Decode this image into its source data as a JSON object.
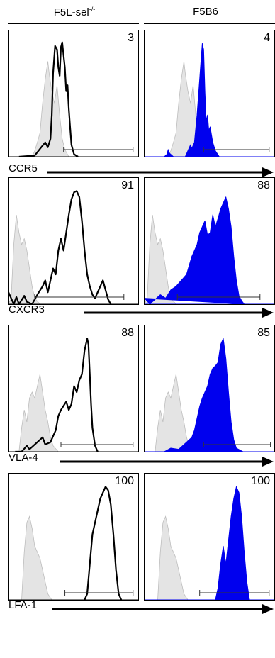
{
  "columns": [
    {
      "label": "F5L-sel",
      "sup": "-/-",
      "fill": "none",
      "stroke": "#000000"
    },
    {
      "label": "F5B6",
      "sup": "",
      "fill": "#0000ee",
      "stroke": "#0000ee"
    }
  ],
  "colors": {
    "control": "#e4e4e4",
    "control_stroke": "#bdbdbd",
    "f5b6": "#0000ee",
    "f5lsel": "#000000"
  },
  "chart_data": {
    "type": "histogram-grid",
    "x_range": [
      0,
      1
    ],
    "rows": [
      {
        "marker": "CCR5",
        "percentages": [
          "3",
          "4"
        ],
        "gate": [
          [
            0.42,
            0.95
          ],
          [
            0.45,
            0.95
          ]
        ],
        "control": [
          [
            0.18,
            0
          ],
          [
            0.2,
            0.05
          ],
          [
            0.22,
            0.12
          ],
          [
            0.24,
            0.2
          ],
          [
            0.26,
            0.45
          ],
          [
            0.28,
            0.65
          ],
          [
            0.3,
            0.8
          ],
          [
            0.31,
            0.7
          ],
          [
            0.33,
            0.55
          ],
          [
            0.35,
            0.45
          ],
          [
            0.37,
            0.6
          ],
          [
            0.39,
            0.35
          ],
          [
            0.41,
            0.15
          ],
          [
            0.43,
            0.06
          ],
          [
            0.46,
            0
          ]
        ],
        "samples": [
          [
            [
              0.08,
              0
            ],
            [
              0.2,
              0.01
            ],
            [
              0.25,
              0.08
            ],
            [
              0.28,
              0.12
            ],
            [
              0.3,
              0.08
            ],
            [
              0.32,
              0.15
            ],
            [
              0.33,
              0.35
            ],
            [
              0.34,
              0.7
            ],
            [
              0.355,
              0.93
            ],
            [
              0.37,
              0.9
            ],
            [
              0.38,
              0.75
            ],
            [
              0.39,
              0.68
            ],
            [
              0.4,
              0.92
            ],
            [
              0.41,
              0.96
            ],
            [
              0.42,
              0.85
            ],
            [
              0.43,
              0.75
            ],
            [
              0.44,
              0.55
            ],
            [
              0.45,
              0.6
            ],
            [
              0.46,
              0.4
            ],
            [
              0.47,
              0.25
            ],
            [
              0.48,
              0.1
            ],
            [
              0.5,
              0.02
            ],
            [
              0.53,
              0
            ]
          ],
          [
            [
              0.15,
              0
            ],
            [
              0.17,
              0.02
            ],
            [
              0.18,
              0.06
            ],
            [
              0.19,
              0.03
            ],
            [
              0.22,
              0
            ],
            [
              0.31,
              0
            ],
            [
              0.33,
              0.05
            ],
            [
              0.35,
              0.1
            ],
            [
              0.36,
              0.07
            ],
            [
              0.38,
              0.12
            ],
            [
              0.4,
              0.35
            ],
            [
              0.42,
              0.65
            ],
            [
              0.43,
              0.8
            ],
            [
              0.44,
              0.95
            ],
            [
              0.45,
              0.9
            ],
            [
              0.46,
              0.55
            ],
            [
              0.47,
              0.3
            ],
            [
              0.48,
              0.35
            ],
            [
              0.49,
              0.22
            ],
            [
              0.5,
              0.25
            ],
            [
              0.52,
              0.12
            ],
            [
              0.54,
              0.05
            ],
            [
              0.57,
              0
            ]
          ]
        ]
      },
      {
        "marker": "CXCR3",
        "percentages": [
          "91",
          "88"
        ],
        "gate": [
          [
            0.2,
            0.88
          ],
          [
            0.25,
            0.88
          ]
        ],
        "control": [
          [
            0,
            0
          ],
          [
            0.02,
            0.05
          ],
          [
            0.04,
            0.5
          ],
          [
            0.06,
            0.75
          ],
          [
            0.08,
            0.6
          ],
          [
            0.1,
            0.5
          ],
          [
            0.12,
            0.55
          ],
          [
            0.14,
            0.45
          ],
          [
            0.16,
            0.3
          ],
          [
            0.18,
            0.15
          ],
          [
            0.2,
            0.05
          ],
          [
            0.24,
            0
          ]
        ],
        "samples": [
          [
            [
              0,
              0.1
            ],
            [
              0.02,
              0.05
            ],
            [
              0.04,
              0
            ],
            [
              0.06,
              0.06
            ],
            [
              0.08,
              0
            ],
            [
              0.12,
              0.07
            ],
            [
              0.14,
              0.02
            ],
            [
              0.18,
              0
            ],
            [
              0.22,
              0.08
            ],
            [
              0.26,
              0.15
            ],
            [
              0.28,
              0.2
            ],
            [
              0.3,
              0.1
            ],
            [
              0.32,
              0.2
            ],
            [
              0.34,
              0.3
            ],
            [
              0.36,
              0.25
            ],
            [
              0.38,
              0.45
            ],
            [
              0.4,
              0.55
            ],
            [
              0.42,
              0.45
            ],
            [
              0.44,
              0.6
            ],
            [
              0.46,
              0.75
            ],
            [
              0.48,
              0.88
            ],
            [
              0.5,
              0.94
            ],
            [
              0.52,
              0.95
            ],
            [
              0.54,
              0.9
            ],
            [
              0.56,
              0.7
            ],
            [
              0.58,
              0.45
            ],
            [
              0.6,
              0.25
            ],
            [
              0.62,
              0.15
            ],
            [
              0.64,
              0.08
            ],
            [
              0.66,
              0.05
            ],
            [
              0.7,
              0.15
            ],
            [
              0.72,
              0.2
            ],
            [
              0.74,
              0.12
            ],
            [
              0.76,
              0.04
            ],
            [
              0.78,
              0
            ]
          ],
          [
            [
              0,
              0.05
            ],
            [
              0.04,
              0
            ],
            [
              0.08,
              0.04
            ],
            [
              0.12,
              0.08
            ],
            [
              0.16,
              0.05
            ],
            [
              0.2,
              0.12
            ],
            [
              0.24,
              0.15
            ],
            [
              0.28,
              0.2
            ],
            [
              0.32,
              0.25
            ],
            [
              0.36,
              0.4
            ],
            [
              0.38,
              0.45
            ],
            [
              0.4,
              0.5
            ],
            [
              0.42,
              0.6
            ],
            [
              0.44,
              0.65
            ],
            [
              0.46,
              0.7
            ],
            [
              0.48,
              0.58
            ],
            [
              0.5,
              0.6
            ],
            [
              0.52,
              0.75
            ],
            [
              0.54,
              0.65
            ],
            [
              0.56,
              0.72
            ],
            [
              0.58,
              0.8
            ],
            [
              0.6,
              0.85
            ],
            [
              0.62,
              0.9
            ],
            [
              0.64,
              0.8
            ],
            [
              0.66,
              0.65
            ],
            [
              0.68,
              0.4
            ],
            [
              0.7,
              0.2
            ],
            [
              0.72,
              0.07
            ],
            [
              0.74,
              0.03
            ],
            [
              0.76,
              0
            ]
          ]
        ]
      },
      {
        "marker": "VLA-4",
        "percentages": [
          "88",
          "85"
        ],
        "gate": [
          [
            0.4,
            0.95
          ],
          [
            0.45,
            0.96
          ]
        ],
        "control": [
          [
            0.08,
            0
          ],
          [
            0.1,
            0.2
          ],
          [
            0.12,
            0.35
          ],
          [
            0.14,
            0.25
          ],
          [
            0.16,
            0.45
          ],
          [
            0.18,
            0.5
          ],
          [
            0.2,
            0.45
          ],
          [
            0.22,
            0.55
          ],
          [
            0.24,
            0.65
          ],
          [
            0.26,
            0.5
          ],
          [
            0.28,
            0.35
          ],
          [
            0.3,
            0.25
          ],
          [
            0.32,
            0.12
          ],
          [
            0.34,
            0.05
          ],
          [
            0.38,
            0
          ]
        ],
        "samples": [
          [
            [
              0.05,
              0
            ],
            [
              0.1,
              0
            ],
            [
              0.14,
              0.05
            ],
            [
              0.16,
              0.02
            ],
            [
              0.22,
              0.08
            ],
            [
              0.26,
              0.12
            ],
            [
              0.28,
              0.06
            ],
            [
              0.32,
              0.08
            ],
            [
              0.36,
              0.18
            ],
            [
              0.38,
              0.3
            ],
            [
              0.4,
              0.35
            ],
            [
              0.44,
              0.42
            ],
            [
              0.46,
              0.35
            ],
            [
              0.48,
              0.4
            ],
            [
              0.5,
              0.55
            ],
            [
              0.52,
              0.5
            ],
            [
              0.54,
              0.6
            ],
            [
              0.56,
              0.65
            ],
            [
              0.58,
              0.85
            ],
            [
              0.6,
              0.95
            ],
            [
              0.61,
              0.9
            ],
            [
              0.62,
              0.65
            ],
            [
              0.63,
              0.4
            ],
            [
              0.64,
              0.2
            ],
            [
              0.66,
              0.05
            ],
            [
              0.68,
              0
            ]
          ],
          [
            [
              0.15,
              0
            ],
            [
              0.2,
              0.03
            ],
            [
              0.26,
              0.02
            ],
            [
              0.32,
              0.08
            ],
            [
              0.36,
              0.12
            ],
            [
              0.38,
              0.18
            ],
            [
              0.4,
              0.28
            ],
            [
              0.42,
              0.38
            ],
            [
              0.44,
              0.45
            ],
            [
              0.46,
              0.5
            ],
            [
              0.48,
              0.55
            ],
            [
              0.5,
              0.65
            ],
            [
              0.52,
              0.7
            ],
            [
              0.54,
              0.72
            ],
            [
              0.56,
              0.75
            ],
            [
              0.58,
              0.9
            ],
            [
              0.6,
              0.95
            ],
            [
              0.62,
              0.78
            ],
            [
              0.64,
              0.5
            ],
            [
              0.66,
              0.25
            ],
            [
              0.68,
              0.1
            ],
            [
              0.7,
              0.03
            ],
            [
              0.75,
              0
            ]
          ]
        ]
      },
      {
        "marker": "LFA-1",
        "percentages": [
          "100",
          "100"
        ],
        "gate": [
          [
            0.43,
            0.95
          ],
          [
            0.42,
            0.95
          ]
        ],
        "control": [
          [
            0.1,
            0
          ],
          [
            0.12,
            0.4
          ],
          [
            0.14,
            0.65
          ],
          [
            0.16,
            0.7
          ],
          [
            0.18,
            0.6
          ],
          [
            0.2,
            0.45
          ],
          [
            0.22,
            0.4
          ],
          [
            0.24,
            0.35
          ],
          [
            0.26,
            0.25
          ],
          [
            0.28,
            0.15
          ],
          [
            0.3,
            0.05
          ],
          [
            0.33,
            0
          ]
        ],
        "samples": [
          [
            [
              0.58,
              0
            ],
            [
              0.6,
              0.05
            ],
            [
              0.62,
              0.3
            ],
            [
              0.64,
              0.55
            ],
            [
              0.66,
              0.65
            ],
            [
              0.68,
              0.75
            ],
            [
              0.7,
              0.85
            ],
            [
              0.72,
              0.9
            ],
            [
              0.74,
              0.95
            ],
            [
              0.76,
              0.92
            ],
            [
              0.78,
              0.8
            ],
            [
              0.8,
              0.55
            ],
            [
              0.82,
              0.25
            ],
            [
              0.84,
              0.05
            ],
            [
              0.86,
              0
            ]
          ],
          [
            [
              0.54,
              0
            ],
            [
              0.56,
              0.1
            ],
            [
              0.58,
              0.3
            ],
            [
              0.6,
              0.45
            ],
            [
              0.62,
              0.3
            ],
            [
              0.64,
              0.5
            ],
            [
              0.66,
              0.7
            ],
            [
              0.68,
              0.85
            ],
            [
              0.7,
              0.95
            ],
            [
              0.72,
              0.9
            ],
            [
              0.74,
              0.7
            ],
            [
              0.76,
              0.4
            ],
            [
              0.78,
              0.15
            ],
            [
              0.8,
              0
            ]
          ]
        ]
      }
    ]
  }
}
